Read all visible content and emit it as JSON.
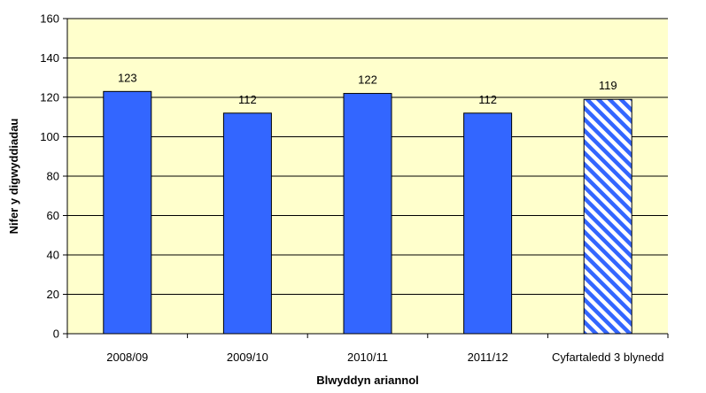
{
  "chart_data": {
    "type": "bar",
    "title": "",
    "xlabel": "Blwyddyn ariannol",
    "ylabel": "Nifer y digwyddiadau",
    "categories": [
      "2008/09",
      "2009/10",
      "2010/11",
      "2011/12",
      "Cyfartaledd 3 blynedd"
    ],
    "values": [
      123,
      112,
      122,
      112,
      119
    ],
    "data_labels": [
      "123",
      "112",
      "122",
      "112",
      "119"
    ],
    "patterned": [
      false,
      false,
      false,
      false,
      true
    ],
    "ylim": [
      0,
      160
    ],
    "yticks": [
      0,
      20,
      40,
      60,
      80,
      100,
      120,
      140,
      160
    ],
    "ytick_labels": [
      "0",
      "20",
      "40",
      "60",
      "80",
      "100",
      "120",
      "140",
      "160"
    ],
    "grid": true,
    "legend": "none",
    "colors": {
      "plot_background": "#FFFFCC",
      "bar_fill": "#3366FF",
      "bar_stroke": "#000000",
      "gridline": "#000000"
    }
  }
}
